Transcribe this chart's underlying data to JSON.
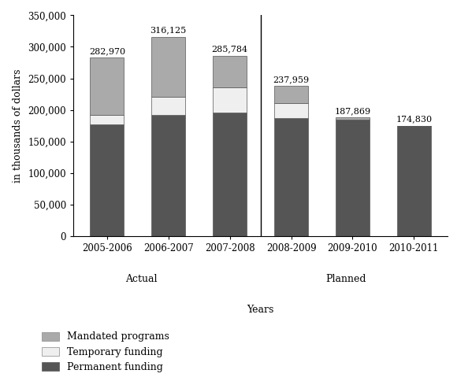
{
  "categories": [
    "2005-2006",
    "2006-2007",
    "2007-2008",
    "2008-2009",
    "2009-2010",
    "2010-2011"
  ],
  "permanent_funding": [
    177296,
    192005,
    195374,
    186972,
    185206,
    174830
  ],
  "temporary_funding": [
    15009,
    28920,
    40103,
    23836,
    0,
    0
  ],
  "mandated_programs": [
    90665,
    95200,
    50307,
    27151,
    2663,
    0
  ],
  "totals": [
    282970,
    316125,
    285784,
    237959,
    187869,
    174830
  ],
  "color_permanent": "#555555",
  "color_temporary": "#efefef",
  "color_mandated": "#aaaaaa",
  "bar_edge_color": "#555555",
  "ylabel": "in thousands of dollars",
  "xlabel": "Years",
  "actual_label": "Actual",
  "planned_label": "Planned",
  "legend_mandated": "Mandated programs",
  "legend_temporary": "Temporary funding",
  "legend_permanent": "Permanent funding",
  "ylim": [
    0,
    350000
  ],
  "yticks": [
    0,
    50000,
    100000,
    150000,
    200000,
    250000,
    300000,
    350000
  ],
  "figsize": [
    5.8,
    4.84
  ],
  "dpi": 100,
  "background_color": "#ffffff"
}
